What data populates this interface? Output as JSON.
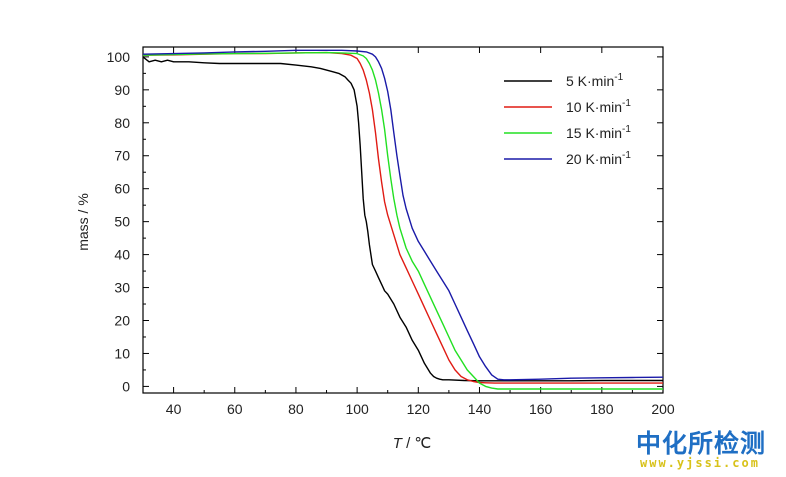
{
  "chart_data": {
    "type": "line",
    "title": "",
    "xlabel_italic": "T",
    "xlabel_unit": " / ℃",
    "ylabel": "mass / %",
    "xlim": [
      30,
      200
    ],
    "ylim": [
      -2,
      103
    ],
    "xticks": [
      40,
      60,
      80,
      100,
      120,
      140,
      160,
      180,
      200
    ],
    "yticks": [
      0,
      10,
      20,
      30,
      40,
      50,
      60,
      70,
      80,
      90,
      100
    ],
    "grid": false,
    "legend_position": "top-right",
    "series": [
      {
        "name": "5",
        "unit": "K·min",
        "exp": "-1",
        "color": "#000000",
        "x": [
          30,
          32,
          34,
          36,
          38,
          40,
          45,
          50,
          55,
          60,
          65,
          70,
          75,
          80,
          85,
          88,
          90,
          92,
          94,
          96,
          97,
          98,
          99,
          100,
          100.5,
          101,
          101.5,
          102,
          102.5,
          103,
          103.5,
          104,
          104.5,
          105,
          106,
          107,
          108,
          109,
          110,
          112,
          114,
          116,
          118,
          120,
          122,
          124,
          125,
          126,
          127,
          128,
          130,
          135,
          140,
          145,
          150,
          160,
          170,
          180,
          190,
          200
        ],
        "y": [
          100,
          98.5,
          99,
          98.5,
          99,
          98.5,
          98.5,
          98.2,
          98,
          98,
          98,
          98,
          98,
          97.5,
          97,
          96.5,
          96,
          95.5,
          95,
          94,
          93,
          92,
          90,
          85,
          80,
          73,
          65,
          57,
          52,
          50,
          47,
          43,
          40,
          37,
          35,
          33,
          31,
          29,
          28,
          25,
          21,
          18,
          14,
          11,
          7,
          4,
          3,
          2.5,
          2.2,
          2,
          2,
          1.8,
          1.7,
          1.7,
          1.7,
          1.7,
          1.7,
          1.8,
          1.8,
          1.8
        ]
      },
      {
        "name": "10",
        "unit": "K·min",
        "exp": "-1",
        "color": "#e01b14",
        "x": [
          30,
          40,
          50,
          60,
          70,
          80,
          90,
          95,
          98,
          100,
          101,
          102,
          103,
          104,
          105,
          106,
          107,
          108,
          109,
          110,
          112,
          114,
          116,
          118,
          120,
          122,
          124,
          126,
          128,
          130,
          132,
          134,
          136,
          138,
          140,
          142,
          145,
          150,
          160,
          170,
          180,
          190,
          200
        ],
        "y": [
          100.5,
          100.6,
          100.8,
          101,
          101,
          101.2,
          101.3,
          101,
          100.5,
          99.5,
          98,
          96,
          93,
          89,
          84,
          77,
          69,
          62,
          56,
          52,
          46,
          40,
          36,
          32,
          28,
          24,
          20,
          16,
          12,
          8,
          5,
          3,
          2,
          1.5,
          1.2,
          1.1,
          1,
          1,
          1,
          1,
          1,
          1,
          1
        ]
      },
      {
        "name": "15",
        "unit": "K·min",
        "exp": "-1",
        "color": "#22e022",
        "x": [
          30,
          40,
          50,
          60,
          70,
          80,
          90,
          95,
          100,
          102,
          103,
          104,
          105,
          106,
          107,
          108,
          109,
          110,
          111,
          112,
          113,
          114,
          116,
          118,
          120,
          122,
          124,
          126,
          128,
          130,
          132,
          134,
          136,
          138,
          140,
          142,
          144,
          146,
          148,
          150,
          155,
          160,
          170,
          180,
          190,
          200
        ],
        "y": [
          100.5,
          100.7,
          100.9,
          101,
          101.1,
          101.2,
          101.3,
          101.2,
          101,
          100.3,
          99.5,
          98,
          96,
          93,
          89,
          84,
          78,
          70,
          63,
          57,
          52,
          48,
          42,
          38,
          35,
          31,
          27,
          23,
          19,
          15,
          11,
          8,
          5,
          3,
          1,
          0,
          -0.5,
          -0.8,
          -0.8,
          -0.8,
          -0.8,
          -0.8,
          -0.8,
          -0.8,
          -0.8,
          -0.8
        ]
      },
      {
        "name": "20",
        "unit": "K·min",
        "exp": "-1",
        "color": "#1a1aa8",
        "x": [
          30,
          40,
          50,
          60,
          70,
          80,
          90,
          95,
          100,
          103,
          105,
          106,
          107,
          108,
          109,
          110,
          111,
          112,
          113,
          114,
          115,
          116,
          118,
          120,
          122,
          124,
          126,
          128,
          130,
          132,
          134,
          136,
          138,
          140,
          142,
          144,
          146,
          148,
          150,
          160,
          170,
          180,
          190,
          200
        ],
        "y": [
          100.8,
          101,
          101.2,
          101.5,
          101.7,
          102,
          102,
          102,
          101.8,
          101.5,
          100.8,
          100,
          98.5,
          96.5,
          93.5,
          89.5,
          84,
          77,
          70,
          64,
          58,
          54,
          48,
          44,
          41,
          38,
          35,
          32,
          29,
          25,
          21,
          17,
          13,
          9,
          6,
          3.5,
          2.2,
          2,
          2,
          2.2,
          2.5,
          2.6,
          2.7,
          2.8
        ]
      }
    ]
  },
  "watermark": {
    "cn": "中化所检测",
    "url": "www.yjssi.com"
  }
}
